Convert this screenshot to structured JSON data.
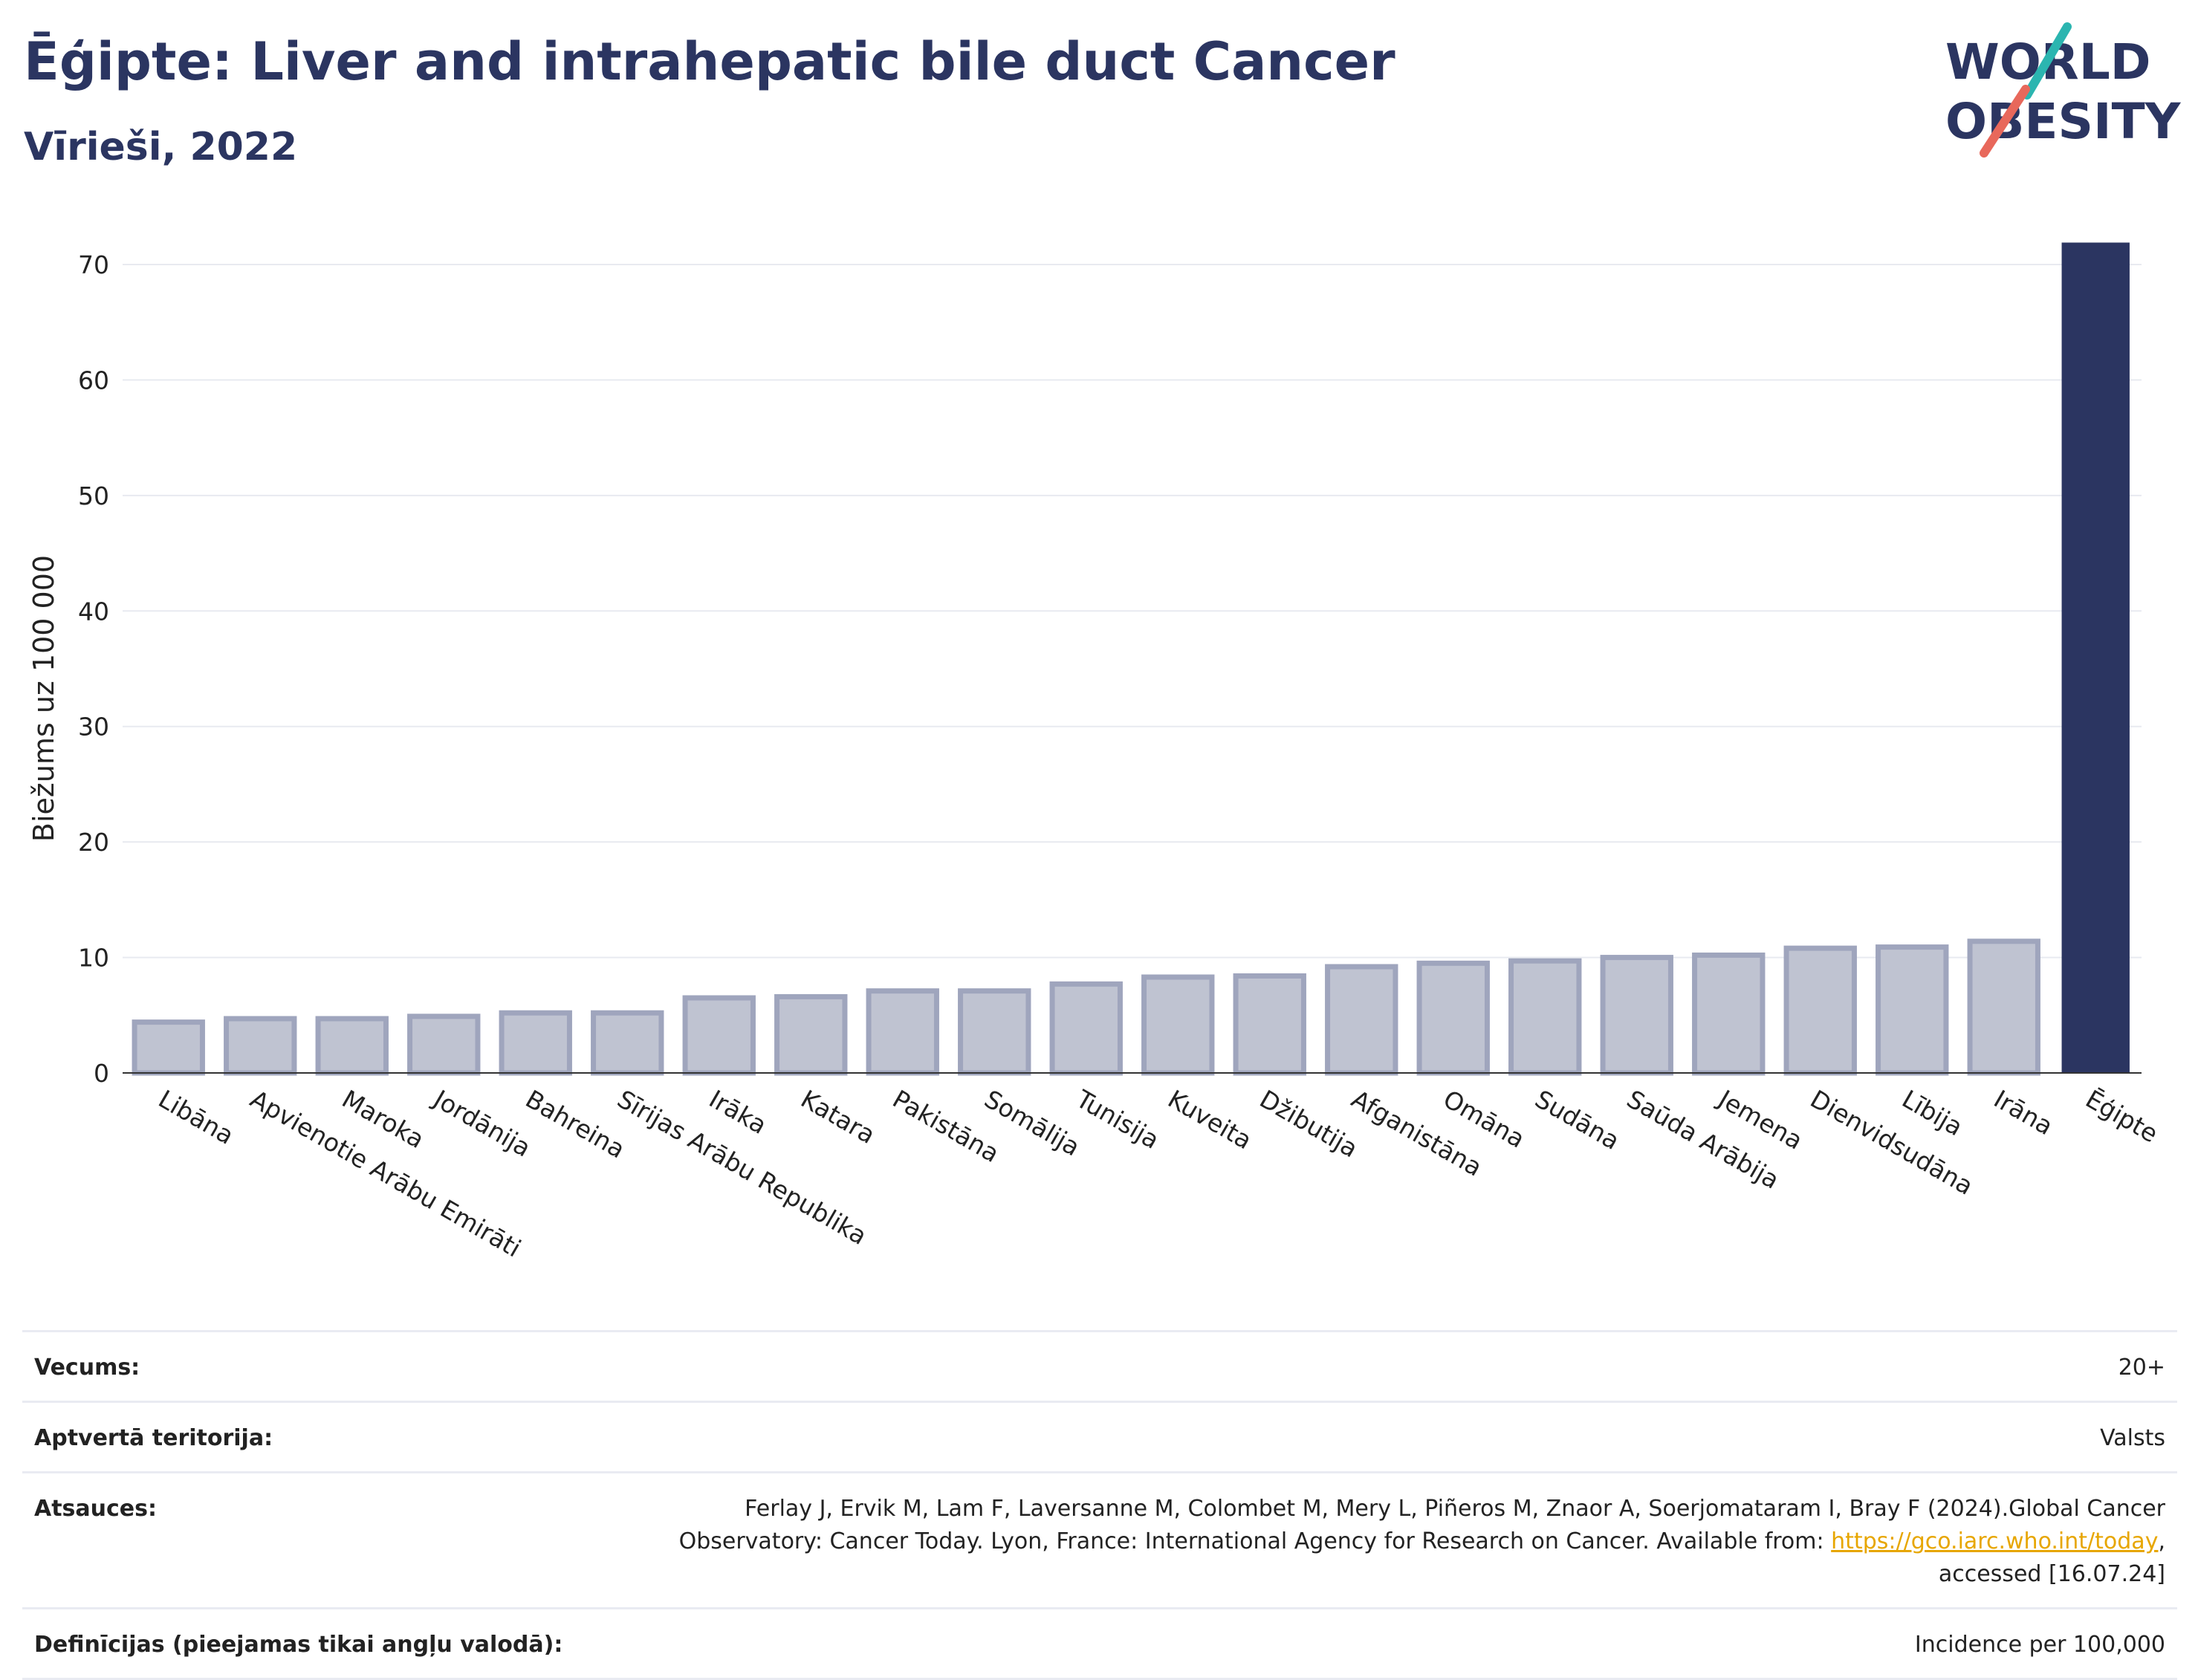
{
  "header": {
    "title": "Ēģipte: Liver and intrahepatic bile duct Cancer",
    "subtitle": "Vīrieši, 2022"
  },
  "logo": {
    "line1": "WORLD",
    "line2": "OBESITY",
    "accent_teal": "#2bb5b0",
    "accent_coral": "#e8685b"
  },
  "chart_data": {
    "type": "bar",
    "ylabel": "Biežums uz 100 000",
    "ylim": [
      0,
      75
    ],
    "yticks": [
      0,
      10,
      20,
      30,
      40,
      50,
      60,
      70
    ],
    "grid": true,
    "categories": [
      "Libāna",
      "Apvienotie Arābu Emirāti",
      "Maroka",
      "Jordānija",
      "Bahreina",
      "Sīrijas Arābu Republika",
      "Irāka",
      "Katara",
      "Pakistāna",
      "Somālija",
      "Tunisija",
      "Kuveita",
      "Džibutija",
      "Afganistāna",
      "Omāna",
      "Sudāna",
      "Saūda Arābija",
      "Jemena",
      "Dienvidsudāna",
      "Lībija",
      "Irāna",
      "Ēģipte"
    ],
    "values": [
      4.4,
      4.7,
      4.7,
      4.9,
      5.2,
      5.2,
      6.5,
      6.6,
      7.1,
      7.1,
      7.7,
      8.3,
      8.4,
      9.2,
      9.5,
      9.7,
      10.0,
      10.2,
      10.8,
      10.9,
      11.4,
      71.9
    ],
    "highlight": "Ēģipte",
    "colors": {
      "highlight": "#2b3561",
      "other_fill": "#bfc3d1",
      "other_stroke": "#9fa5bd"
    }
  },
  "meta": [
    {
      "label": "Vecums:",
      "value": "20+"
    },
    {
      "label": "Aptvertā teritorija:",
      "value": "Valsts"
    },
    {
      "label": "Atsauces:",
      "value_line1": "Ferlay J, Ervik M, Lam F, Laversanne M, Colombet M, Mery L, Piñeros M, Znaor A, Soerjomataram I, Bray F (2024).Global Cancer",
      "value_line2": "Observatory: Cancer Today. Lyon, France: International Agency for Research on Cancer. Available from: ",
      "link": "https://gco.iarc.who.int/today",
      "value_line3": ",",
      "value_line4": "accessed [16.07.24]"
    },
    {
      "label": "Definīcijas (pieejamas tikai angļu valodā):",
      "value": "Incidence per 100,000"
    }
  ]
}
